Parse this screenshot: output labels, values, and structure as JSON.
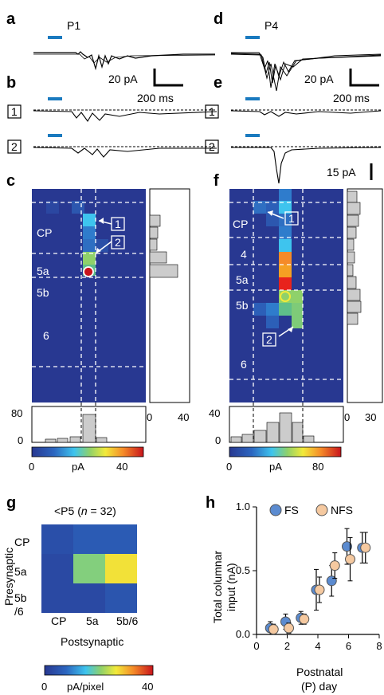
{
  "panels": {
    "a": {
      "letter": "a",
      "condition": "P1"
    },
    "b": {
      "letter": "b",
      "site1": "1",
      "site2": "2"
    },
    "c": {
      "letter": "c",
      "layers": [
        "CP",
        "5a",
        "5b",
        "6"
      ],
      "callout1": "1",
      "callout2": "2",
      "right_hist_ticks": [
        "0",
        "40"
      ],
      "bottom_hist_ticks": [
        "80",
        "0"
      ],
      "colorbar_ticks": [
        "0",
        "pA",
        "40"
      ]
    },
    "d": {
      "letter": "d",
      "condition": "P4"
    },
    "e": {
      "letter": "e",
      "site1": "1",
      "site2": "2"
    },
    "f": {
      "letter": "f",
      "layers": [
        "CP",
        "4",
        "5a",
        "5b",
        "6"
      ],
      "callout1": "1",
      "callout2": "2",
      "right_hist_ticks": [
        "0",
        "30"
      ],
      "bottom_hist_ticks": [
        "40",
        "0"
      ],
      "colorbar_ticks": [
        "0",
        "pA",
        "80"
      ]
    },
    "g": {
      "letter": "g"
    },
    "h": {
      "letter": "h"
    }
  },
  "scalebars": {
    "amp_a": "20 pA",
    "time_a": "200 ms",
    "amp_d": "20 pA",
    "time_d": "200 ms",
    "amp_e": "15 pA"
  },
  "colors": {
    "stim": "#1a7abf",
    "map_bg": "#283891",
    "dashed": "#ffffff",
    "hist": "#cccccc",
    "fs": "#5b8bd0",
    "nfs": "#f5c9a0"
  },
  "chart_data": [
    {
      "type": "heatmap",
      "panel": "g",
      "title": "<P5 (n = 32)",
      "title_parts": {
        "pre": "<P5 (",
        "n": "n",
        "eq": " = 32)"
      },
      "xlabel": "Postsynaptic",
      "ylabel": "Presynaptic",
      "x_categories": [
        "CP",
        "5a",
        "5b/6"
      ],
      "y_categories": [
        "CP",
        "5a",
        "5b/6"
      ],
      "y_category_lines": [
        "CP",
        "5a",
        "5b",
        "/6"
      ],
      "values": [
        [
          4,
          6,
          6
        ],
        [
          3,
          20,
          27
        ],
        [
          3,
          3,
          5
        ]
      ],
      "colorbar": {
        "min": 0,
        "max": 40,
        "label": "pA/pixel",
        "ticks": [
          "0",
          "pA/pixel",
          "40"
        ]
      }
    },
    {
      "type": "scatter",
      "panel": "h",
      "xlabel": "Postnatal (P) day",
      "xlabel_lines": [
        "Postnatal",
        "(P) day"
      ],
      "ylabel": "Total columnar input (nA)",
      "ylabel_lines": [
        "Total columnar",
        "input (nA)"
      ],
      "xlim": [
        0,
        8
      ],
      "ylim": [
        0,
        1.0
      ],
      "x_ticks": [
        "0",
        "2",
        "4",
        "6",
        "8"
      ],
      "y_ticks": [
        "0.0",
        "0.5",
        "1.0"
      ],
      "legend_position": "top",
      "series": [
        {
          "name": "FS",
          "color": "#5b8bd0",
          "x": [
            1,
            2,
            3,
            4,
            5,
            6,
            7
          ],
          "y": [
            0.05,
            0.1,
            0.13,
            0.35,
            0.42,
            0.69,
            0.68
          ],
          "err": [
            0.05,
            0.06,
            0.05,
            0.16,
            0.12,
            0.14,
            0.12
          ]
        },
        {
          "name": "NFS",
          "color": "#f5c9a0",
          "x": [
            1,
            2,
            3,
            4,
            5,
            6,
            7
          ],
          "y": [
            0.04,
            0.05,
            0.12,
            0.35,
            0.54,
            0.59,
            0.68
          ],
          "err": [
            0.04,
            0.04,
            0.04,
            0.1,
            0.1,
            0.17,
            0.12
          ]
        }
      ]
    }
  ]
}
